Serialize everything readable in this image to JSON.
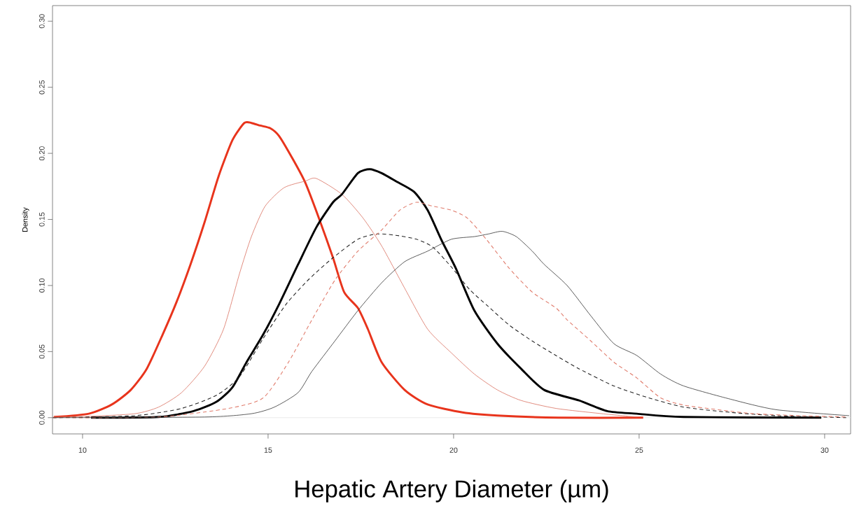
{
  "chart_data": {
    "type": "line",
    "xlabel": "Hepatic Artery Diameter (µm)",
    "ylabel": "Density",
    "xlim": [
      9.19,
      30.7
    ],
    "ylim": [
      -0.0123,
      0.3118
    ],
    "xticks": [
      10,
      15,
      20,
      25,
      30
    ],
    "yticks": [
      {
        "value": 0,
        "label": "0.00"
      },
      {
        "value": 0.05,
        "label": "0.05"
      },
      {
        "value": 0.1,
        "label": "0.10"
      },
      {
        "value": 0.15,
        "label": "0.15"
      },
      {
        "value": 0.2,
        "label": "0.20"
      },
      {
        "value": 0.25,
        "label": "0.25"
      },
      {
        "value": 0.3,
        "label": "0.30"
      }
    ],
    "ref_lines": [
      {
        "axis": "y",
        "value": 0,
        "color": "#e6e6e6"
      }
    ],
    "series": [
      {
        "color": "#e8341c",
        "line_style": "solid",
        "x": [
          9.23,
          10.17,
          10.79,
          11.3,
          11.73,
          12.16,
          12.54,
          12.91,
          13.29,
          13.67,
          14.04,
          14.36,
          14.55,
          14.79,
          15.06,
          15.3,
          15.68,
          16.0,
          16.37,
          16.75,
          17.05,
          17.42,
          17.69,
          18.06,
          18.68,
          19.3,
          20.24,
          21.18,
          22.82,
          25.11
        ],
        "values": [
          0.0005,
          0.003,
          0.01,
          0.021,
          0.037,
          0.063,
          0.088,
          0.116,
          0.148,
          0.183,
          0.21,
          0.223,
          0.223,
          0.221,
          0.219,
          0.213,
          0.195,
          0.178,
          0.151,
          0.121,
          0.095,
          0.083,
          0.067,
          0.042,
          0.021,
          0.01,
          0.004,
          0.0016,
          0.0,
          0.0
        ]
      },
      {
        "color": "#d9705f",
        "line_style": "solid",
        "x": [
          9.2,
          10.17,
          11.41,
          12.05,
          12.67,
          13.29,
          13.8,
          14.23,
          14.55,
          14.92,
          15.43,
          16.0,
          16.3,
          16.99,
          17.56,
          18.06,
          18.68,
          19.3,
          19.94,
          20.56,
          21.18,
          21.82,
          22.76,
          24.0,
          24.94
        ],
        "values": [
          0.0005,
          0.001,
          0.003,
          0.008,
          0.019,
          0.039,
          0.067,
          0.109,
          0.137,
          0.16,
          0.174,
          0.179,
          0.181,
          0.169,
          0.151,
          0.13,
          0.098,
          0.067,
          0.049,
          0.033,
          0.021,
          0.013,
          0.007,
          0.003,
          0.0005
        ]
      },
      {
        "color": "#000000",
        "line_style": "solid",
        "x": [
          10.23,
          12.05,
          12.99,
          13.61,
          14.04,
          14.42,
          14.87,
          15.3,
          15.81,
          16.3,
          16.75,
          16.99,
          17.42,
          17.74,
          18.06,
          18.44,
          18.93,
          19.3,
          19.68,
          20.06,
          20.56,
          21.18,
          21.82,
          22.44,
          23.38,
          24.14,
          24.94,
          26.2,
          29.91
        ],
        "values": [
          0.0,
          0.0005,
          0.005,
          0.012,
          0.023,
          0.042,
          0.063,
          0.086,
          0.116,
          0.144,
          0.163,
          0.169,
          0.185,
          0.188,
          0.185,
          0.179,
          0.171,
          0.157,
          0.134,
          0.113,
          0.081,
          0.056,
          0.037,
          0.021,
          0.013,
          0.005,
          0.003,
          0.0005,
          0.0
        ]
      },
      {
        "color": "#222222",
        "line_style": "dashed",
        "x": [
          9.2,
          11.41,
          12.67,
          13.61,
          14.23,
          14.87,
          15.49,
          16.11,
          16.75,
          17.42,
          17.93,
          18.44,
          19.0,
          19.44,
          19.94,
          20.43,
          20.94,
          21.5,
          22.12,
          22.76,
          23.38,
          24.32,
          25.26,
          26.2,
          27.46,
          28.7,
          30.58
        ],
        "values": [
          0.0,
          0.0015,
          0.007,
          0.017,
          0.031,
          0.06,
          0.086,
          0.105,
          0.121,
          0.135,
          0.139,
          0.138,
          0.135,
          0.129,
          0.114,
          0.097,
          0.084,
          0.07,
          0.058,
          0.047,
          0.037,
          0.024,
          0.015,
          0.008,
          0.004,
          0.0015,
          0.0
        ]
      },
      {
        "color": "#e07a6a",
        "line_style": "dashed",
        "x": [
          9.2,
          12.05,
          13.93,
          14.87,
          15.55,
          16.18,
          16.8,
          17.42,
          18.06,
          18.55,
          19.0,
          19.44,
          19.94,
          20.37,
          20.88,
          21.5,
          22.12,
          22.76,
          23.06,
          23.7,
          24.32,
          24.94,
          25.58,
          26.2,
          27.14,
          28.08,
          29.34,
          30.58
        ],
        "values": [
          0.0,
          0.0005,
          0.007,
          0.015,
          0.042,
          0.074,
          0.104,
          0.126,
          0.142,
          0.157,
          0.163,
          0.16,
          0.157,
          0.151,
          0.135,
          0.113,
          0.095,
          0.083,
          0.074,
          0.058,
          0.042,
          0.03,
          0.015,
          0.0095,
          0.006,
          0.003,
          0.0015,
          0.0005
        ]
      },
      {
        "color": "#333333",
        "line_style": "solid",
        "x": [
          9.2,
          13.29,
          14.55,
          15.17,
          15.81,
          16.18,
          16.8,
          17.42,
          18.06,
          18.68,
          19.3,
          19.94,
          20.56,
          20.94,
          21.31,
          21.69,
          22.12,
          22.44,
          23.06,
          23.7,
          24.32,
          24.94,
          25.58,
          26.2,
          27.46,
          28.7,
          30.66
        ],
        "values": [
          0.0,
          0.0005,
          0.003,
          0.008,
          0.019,
          0.035,
          0.058,
          0.081,
          0.102,
          0.118,
          0.126,
          0.135,
          0.137,
          0.139,
          0.141,
          0.137,
          0.126,
          0.116,
          0.1,
          0.077,
          0.056,
          0.047,
          0.033,
          0.024,
          0.014,
          0.006,
          0.0015
        ]
      }
    ]
  }
}
